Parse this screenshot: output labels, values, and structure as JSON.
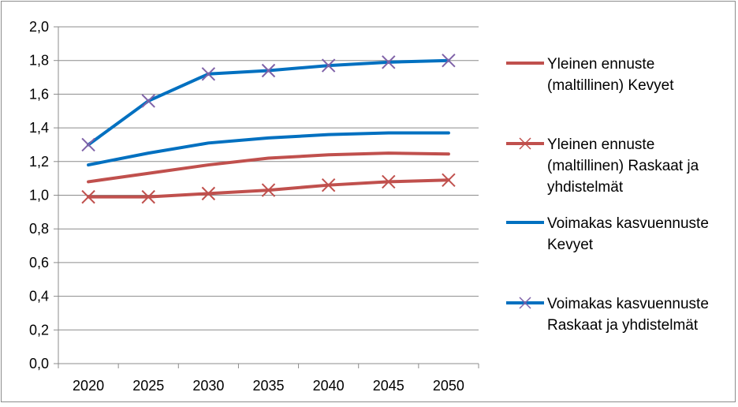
{
  "chart_data": {
    "type": "line",
    "categories": [
      "2020",
      "2025",
      "2030",
      "2035",
      "2040",
      "2045",
      "2050"
    ],
    "ylim": [
      0,
      2.0
    ],
    "y_ticks": [
      "0,0",
      "0,2",
      "0,4",
      "0,6",
      "0,8",
      "1,0",
      "1,2",
      "1,4",
      "1,6",
      "1,8",
      "2,0"
    ],
    "grid": "horizontal",
    "legend_position": "right",
    "series": [
      {
        "name_lines": [
          "Yleinen ennuste",
          "(maltillinen) Kevyet"
        ],
        "color": "#c0504d",
        "marker": "none",
        "values": [
          1.08,
          1.13,
          1.18,
          1.22,
          1.24,
          1.25,
          1.245
        ]
      },
      {
        "name_lines": [
          "Yleinen ennuste",
          "(maltillinen) Raskaat ja",
          "yhdistelmät"
        ],
        "color": "#c0504d",
        "marker": "x",
        "values": [
          0.99,
          0.99,
          1.01,
          1.03,
          1.06,
          1.08,
          1.09
        ]
      },
      {
        "name_lines": [
          "Voimakas kasvuennuste",
          "Kevyet"
        ],
        "color": "#0070c0",
        "marker": "none",
        "values": [
          1.18,
          1.25,
          1.31,
          1.34,
          1.36,
          1.37,
          1.37
        ]
      },
      {
        "name_lines": [
          "Voimakas kasvuennuste",
          "Raskaat ja yhdistelmät"
        ],
        "color": "#0070c0",
        "marker": "x",
        "marker_color": "#7f62a8",
        "values": [
          1.3,
          1.56,
          1.72,
          1.74,
          1.77,
          1.79,
          1.8
        ]
      }
    ]
  }
}
